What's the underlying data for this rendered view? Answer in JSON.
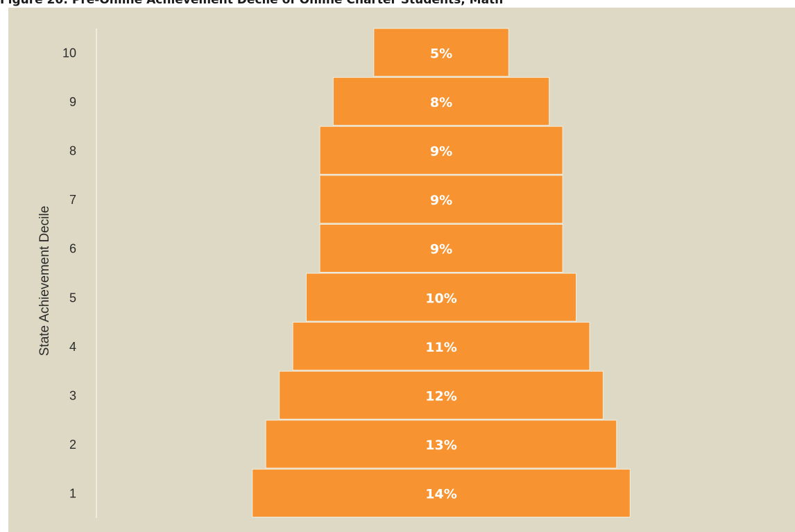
{
  "title": "Figure 20: Pre-Online Achievement Decile of Online Charter Students, Math",
  "colors": {
    "background": "#ddd9c4",
    "bar": "#f79431",
    "bar_stroke": "#f2efe2",
    "axis": "#f4f2ea"
  },
  "chart_data": {
    "type": "bar",
    "orientation": "horizontal-centered",
    "title": "Figure 20: Pre-Online Achievement Decile of Online Charter Students, Math",
    "ylabel": "State Achievement Decile",
    "xlabel": "",
    "categories": [
      "1",
      "2",
      "3",
      "4",
      "5",
      "6",
      "7",
      "8",
      "9",
      "10"
    ],
    "values": [
      14,
      13,
      12,
      11,
      10,
      9,
      9,
      9,
      8,
      5
    ],
    "labels": [
      "14%",
      "13%",
      "12%",
      "11%",
      "10%",
      "9%",
      "9%",
      "9%",
      "8%",
      "5%"
    ],
    "value_unit": "%",
    "grid": false,
    "legend": "none"
  }
}
